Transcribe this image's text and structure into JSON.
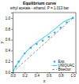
{
  "chart_data": {
    "type": "line",
    "title": "Equilibrium curve",
    "subtitle": "ethyl acetate - ethanol, P = 1.013 bar",
    "x_label": "x",
    "y_label": "y",
    "xlim": [
      0.0,
      1.05
    ],
    "ylim": [
      0.0,
      1.1
    ],
    "xticks": [
      {
        "value": 0.0,
        "label": "0.0"
      },
      0.2,
      0.4,
      0.6,
      0.8,
      {
        "value": 1.0,
        "label": "1.0"
      }
    ],
    "yticks": [
      {
        "value": 0.0,
        "label": "0.0"
      },
      0.2,
      0.4,
      0.6,
      0.8,
      {
        "value": 1.0,
        "label": "1.0"
      }
    ],
    "grid": false,
    "legend": "lower right",
    "series": [
      {
        "name": "Exp.",
        "type": "scatter",
        "marker": "point",
        "color": "#4499ff",
        "x": [
          0.0,
          0.05,
          0.1,
          0.2,
          0.3,
          0.4,
          0.5,
          0.6,
          0.7,
          0.8,
          0.9,
          1.0
        ],
        "values": [
          0.0,
          0.105,
          0.195,
          0.348,
          0.45,
          0.52,
          0.583,
          0.65,
          0.73,
          0.82,
          0.92,
          1.0
        ]
      },
      {
        "name": "UNIQUAC",
        "type": "line",
        "line_style": "solid",
        "color": "#00ccee",
        "x": [
          0.0,
          0.05,
          0.1,
          0.15,
          0.2,
          0.25,
          0.3,
          0.35,
          0.4,
          0.45,
          0.5,
          0.55,
          0.6,
          0.65,
          0.7,
          0.75,
          0.8,
          0.85,
          0.9,
          0.95,
          1.0
        ],
        "values": [
          0.0,
          0.105,
          0.195,
          0.275,
          0.348,
          0.408,
          0.46,
          0.505,
          0.548,
          0.588,
          0.628,
          0.668,
          0.71,
          0.753,
          0.798,
          0.843,
          0.888,
          0.928,
          0.96,
          0.982,
          1.0
        ]
      },
      {
        "name": "Bisector",
        "type": "line",
        "line_style": "dashed",
        "color": "#888888",
        "x": [
          0.0,
          1.0
        ],
        "values": [
          0.0,
          1.0
        ]
      }
    ]
  }
}
